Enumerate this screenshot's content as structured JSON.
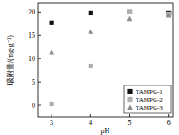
{
  "chart_data": {
    "type": "scatter",
    "x_label": "pH",
    "y_label": "吸附量/(mg·g⁻¹)",
    "x": [
      3,
      4,
      5,
      6
    ],
    "series": [
      {
        "name": "TAMPG-1",
        "color": "#111111",
        "marker": "square",
        "values": [
          17.7,
          19.8,
          20.0,
          19.8
        ]
      },
      {
        "name": "TAMPG-2",
        "color": "#b0b0b0",
        "marker": "square",
        "values": [
          0.3,
          8.4,
          20.0,
          19.6
        ]
      },
      {
        "name": "TAMPG-3",
        "color": "#8c8c8c",
        "marker": "triangle",
        "values": [
          11.4,
          15.8,
          18.6,
          19.3
        ]
      }
    ],
    "xlim": [
      2.65,
      6.1
    ],
    "xticks": [
      3,
      4,
      5,
      6
    ],
    "ylim": [
      -2.5,
      22
    ],
    "yticks": [
      0,
      5,
      10,
      15,
      20
    ],
    "grid": false,
    "legend": "lower right"
  }
}
